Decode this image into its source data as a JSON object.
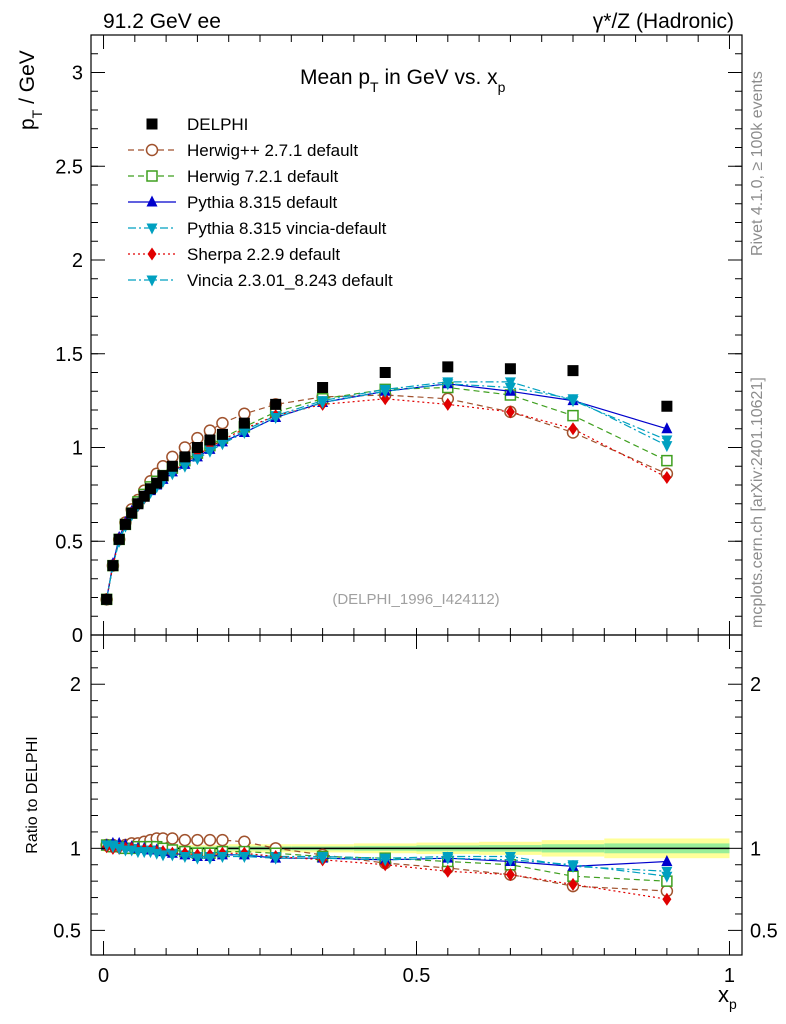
{
  "header": {
    "left": "91.2 GeV ee",
    "right": "γ*/Z (Hadronic)"
  },
  "side_texts": {
    "rivet": "Rivet 4.1.0, ≥ 100k events",
    "mcplots": "mcplots.cern.ch [arXiv:2401.10621]"
  },
  "chart_data": [
    {
      "type": "line",
      "panel": "main",
      "title": "Mean p_T in GeV vs. x_p",
      "title_parts": [
        "Mean p",
        "T",
        " in GeV vs. x",
        "p"
      ],
      "ylabel": "p_T / GeV",
      "ylabel_parts": [
        "p",
        "T",
        " / GeV"
      ],
      "xlim": [
        -0.02,
        1.02
      ],
      "ylim": [
        0,
        3.2
      ],
      "yticks": [
        0,
        0.5,
        1,
        1.5,
        2,
        2.5,
        3
      ],
      "ytick_labels": [
        "0",
        "0.5",
        "1",
        "1.5",
        "2",
        "2.5",
        "3"
      ],
      "watermark": "(DELPHI_1996_I424112)",
      "x": [
        0.005,
        0.015,
        0.025,
        0.035,
        0.045,
        0.055,
        0.065,
        0.075,
        0.085,
        0.095,
        0.11,
        0.13,
        0.15,
        0.17,
        0.19,
        0.225,
        0.275,
        0.35,
        0.45,
        0.55,
        0.65,
        0.75,
        0.9
      ],
      "series": [
        {
          "name": "DELPHI",
          "color": "#000000",
          "marker": "square-filled",
          "dash": "none",
          "values": [
            0.19,
            0.37,
            0.51,
            0.59,
            0.65,
            0.7,
            0.74,
            0.78,
            0.81,
            0.85,
            0.9,
            0.95,
            1.0,
            1.04,
            1.07,
            1.13,
            1.23,
            1.32,
            1.4,
            1.43,
            1.42,
            1.41,
            1.22
          ]
        },
        {
          "name": "Herwig++ 2.7.1 default",
          "color": "#a0522d",
          "marker": "circle-open",
          "dash": "dashed",
          "values": [
            0.19,
            0.37,
            0.51,
            0.6,
            0.67,
            0.72,
            0.77,
            0.82,
            0.86,
            0.9,
            0.95,
            1.0,
            1.05,
            1.09,
            1.13,
            1.18,
            1.23,
            1.27,
            1.28,
            1.26,
            1.19,
            1.08,
            0.86
          ]
        },
        {
          "name": "Herwig 7.2.1 default",
          "color": "#3f9f1f",
          "marker": "square-open",
          "dash": "dashed",
          "values": [
            0.19,
            0.37,
            0.51,
            0.59,
            0.65,
            0.71,
            0.75,
            0.79,
            0.82,
            0.85,
            0.89,
            0.93,
            0.97,
            1.01,
            1.05,
            1.11,
            1.19,
            1.26,
            1.31,
            1.32,
            1.28,
            1.17,
            0.93
          ]
        },
        {
          "name": "Pythia 8.315 default",
          "color": "#0000cc",
          "marker": "triangle-up",
          "dash": "none",
          "values": [
            0.19,
            0.38,
            0.52,
            0.6,
            0.66,
            0.7,
            0.74,
            0.77,
            0.8,
            0.83,
            0.87,
            0.91,
            0.95,
            0.99,
            1.03,
            1.08,
            1.16,
            1.24,
            1.3,
            1.34,
            1.3,
            1.25,
            1.1
          ]
        },
        {
          "name": "Pythia 8.315 vincia-default",
          "color": "#00a0c0",
          "marker": "triangle-down",
          "dash": "dashdot",
          "values": [
            0.19,
            0.37,
            0.51,
            0.59,
            0.65,
            0.69,
            0.73,
            0.77,
            0.8,
            0.83,
            0.87,
            0.91,
            0.95,
            0.99,
            1.03,
            1.09,
            1.17,
            1.25,
            1.31,
            1.35,
            1.35,
            1.25,
            1.04
          ]
        },
        {
          "name": "Sherpa 2.2.9 default",
          "color": "#e00000",
          "marker": "diamond",
          "dash": "dotted",
          "values": [
            0.19,
            0.37,
            0.51,
            0.59,
            0.65,
            0.69,
            0.73,
            0.77,
            0.8,
            0.83,
            0.87,
            0.92,
            0.96,
            1.0,
            1.04,
            1.1,
            1.17,
            1.23,
            1.26,
            1.23,
            1.19,
            1.1,
            0.84
          ]
        },
        {
          "name": "Vincia 2.3.01_8.243 default",
          "color": "#00a0c0",
          "marker": "triangle-down",
          "dash": "dashdot",
          "values": [
            0.19,
            0.37,
            0.5,
            0.58,
            0.64,
            0.69,
            0.73,
            0.76,
            0.79,
            0.82,
            0.86,
            0.9,
            0.94,
            0.98,
            1.02,
            1.08,
            1.16,
            1.24,
            1.3,
            1.34,
            1.32,
            1.26,
            1.01
          ]
        }
      ]
    },
    {
      "type": "line",
      "panel": "ratio",
      "ylabel": "Ratio to DELPHI",
      "xlabel": "x_p",
      "xlabel_parts": [
        "x",
        "p"
      ],
      "xlim": [
        -0.02,
        1.02
      ],
      "ylim": [
        0.35,
        2.3
      ],
      "yticks": [
        0.5,
        1,
        2
      ],
      "ytick_labels": [
        "0.5",
        "1",
        "2"
      ],
      "xticks": [
        0,
        0.5,
        1
      ],
      "xtick_labels": [
        "0",
        "0.5",
        "1"
      ],
      "x": [
        0.005,
        0.015,
        0.025,
        0.035,
        0.045,
        0.055,
        0.065,
        0.075,
        0.085,
        0.095,
        0.11,
        0.13,
        0.15,
        0.17,
        0.19,
        0.225,
        0.275,
        0.35,
        0.45,
        0.55,
        0.65,
        0.75,
        0.9
      ],
      "uncertainty_band": {
        "x_edges": [
          0,
          0.2,
          0.3,
          0.4,
          0.5,
          0.6,
          0.7,
          0.8,
          1.0
        ],
        "inner": [
          0.01,
          0.012,
          0.012,
          0.015,
          0.018,
          0.02,
          0.025,
          0.03
        ],
        "outer": [
          0.02,
          0.025,
          0.025,
          0.03,
          0.035,
          0.04,
          0.05,
          0.06
        ]
      },
      "series": [
        {
          "name": "Herwig++ 2.7.1 default",
          "color": "#a0522d",
          "marker": "circle-open",
          "dash": "dashed",
          "values": [
            1.02,
            1.02,
            1.01,
            1.02,
            1.03,
            1.03,
            1.04,
            1.05,
            1.06,
            1.06,
            1.06,
            1.05,
            1.05,
            1.05,
            1.05,
            1.04,
            1.0,
            0.96,
            0.91,
            0.88,
            0.84,
            0.77,
            0.74
          ]
        },
        {
          "name": "Herwig 7.2.1 default",
          "color": "#3f9f1f",
          "marker": "square-open",
          "dash": "dashed",
          "values": [
            1.02,
            1.01,
            1.01,
            1.0,
            1.0,
            1.01,
            1.01,
            1.01,
            1.01,
            1.0,
            0.99,
            0.98,
            0.97,
            0.97,
            0.98,
            0.98,
            0.97,
            0.95,
            0.94,
            0.92,
            0.9,
            0.83,
            0.8
          ]
        },
        {
          "name": "Pythia 8.315 default",
          "color": "#0000cc",
          "marker": "triangle-up",
          "dash": "none",
          "values": [
            1.02,
            1.03,
            1.03,
            1.02,
            1.01,
            1.0,
            1.0,
            0.99,
            0.99,
            0.98,
            0.97,
            0.96,
            0.95,
            0.95,
            0.96,
            0.96,
            0.94,
            0.94,
            0.93,
            0.94,
            0.92,
            0.89,
            0.92
          ]
        },
        {
          "name": "Pythia 8.315 vincia-default",
          "color": "#00a0c0",
          "marker": "triangle-down",
          "dash": "dashdot",
          "values": [
            1.02,
            1.02,
            1.01,
            1.0,
            1.0,
            0.99,
            0.99,
            0.99,
            0.98,
            0.97,
            0.97,
            0.96,
            0.95,
            0.95,
            0.96,
            0.96,
            0.95,
            0.95,
            0.94,
            0.95,
            0.95,
            0.89,
            0.86
          ]
        },
        {
          "name": "Sherpa 2.2.9 default",
          "color": "#e00000",
          "marker": "diamond",
          "dash": "dotted",
          "values": [
            1.01,
            1.0,
            1.0,
            1.0,
            1.0,
            0.99,
            0.99,
            0.99,
            0.98,
            0.98,
            0.97,
            0.97,
            0.96,
            0.96,
            0.97,
            0.97,
            0.95,
            0.93,
            0.9,
            0.86,
            0.84,
            0.78,
            0.69
          ]
        },
        {
          "name": "Vincia 2.3.01_8.243 default",
          "color": "#00a0c0",
          "marker": "triangle-down",
          "dash": "dashdot",
          "values": [
            1.02,
            1.01,
            1.0,
            0.99,
            0.99,
            0.98,
            0.98,
            0.98,
            0.97,
            0.96,
            0.96,
            0.95,
            0.94,
            0.94,
            0.95,
            0.95,
            0.94,
            0.94,
            0.93,
            0.94,
            0.93,
            0.9,
            0.83
          ]
        }
      ]
    }
  ]
}
